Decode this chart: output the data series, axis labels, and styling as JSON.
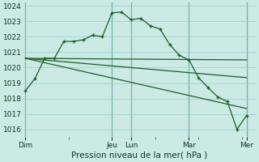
{
  "background_color": "#cceae4",
  "grid_color": "#99cccc",
  "line_color": "#1a5c2a",
  "ylim": [
    1015.5,
    1024.2
  ],
  "ylabel_ticks": [
    1016,
    1017,
    1018,
    1019,
    1020,
    1021,
    1022,
    1023,
    1024
  ],
  "xlabel": "Pression niveau de la mer( hPa )",
  "xtick_labels": [
    "Dim",
    "Jeu",
    "Lun",
    "Mar",
    "Mer"
  ],
  "xtick_positions": [
    0,
    9,
    11,
    17,
    23
  ],
  "vline_positions": [
    0,
    9,
    11,
    17,
    23
  ],
  "xlim": [
    -0.3,
    24.0
  ],
  "series1_x": [
    0,
    1,
    2,
    3,
    4,
    5,
    6,
    7,
    8,
    9,
    10,
    11,
    12,
    13,
    14,
    15,
    16,
    17,
    18,
    19,
    20,
    21,
    22,
    23
  ],
  "series1_y": [
    1018.5,
    1019.3,
    1020.6,
    1020.6,
    1021.7,
    1021.7,
    1021.8,
    1022.1,
    1022.0,
    1023.55,
    1023.6,
    1023.1,
    1023.2,
    1022.7,
    1022.5,
    1021.5,
    1020.8,
    1020.5,
    1019.35,
    1018.7,
    1018.1,
    1017.8,
    1016.0,
    1016.9
  ],
  "series2_x": [
    0,
    23
  ],
  "series2_y": [
    1020.6,
    1020.5
  ],
  "series3_x": [
    0,
    23
  ],
  "series3_y": [
    1020.6,
    1019.35
  ],
  "series4_x": [
    0,
    23
  ],
  "series4_y": [
    1020.6,
    1017.35
  ]
}
